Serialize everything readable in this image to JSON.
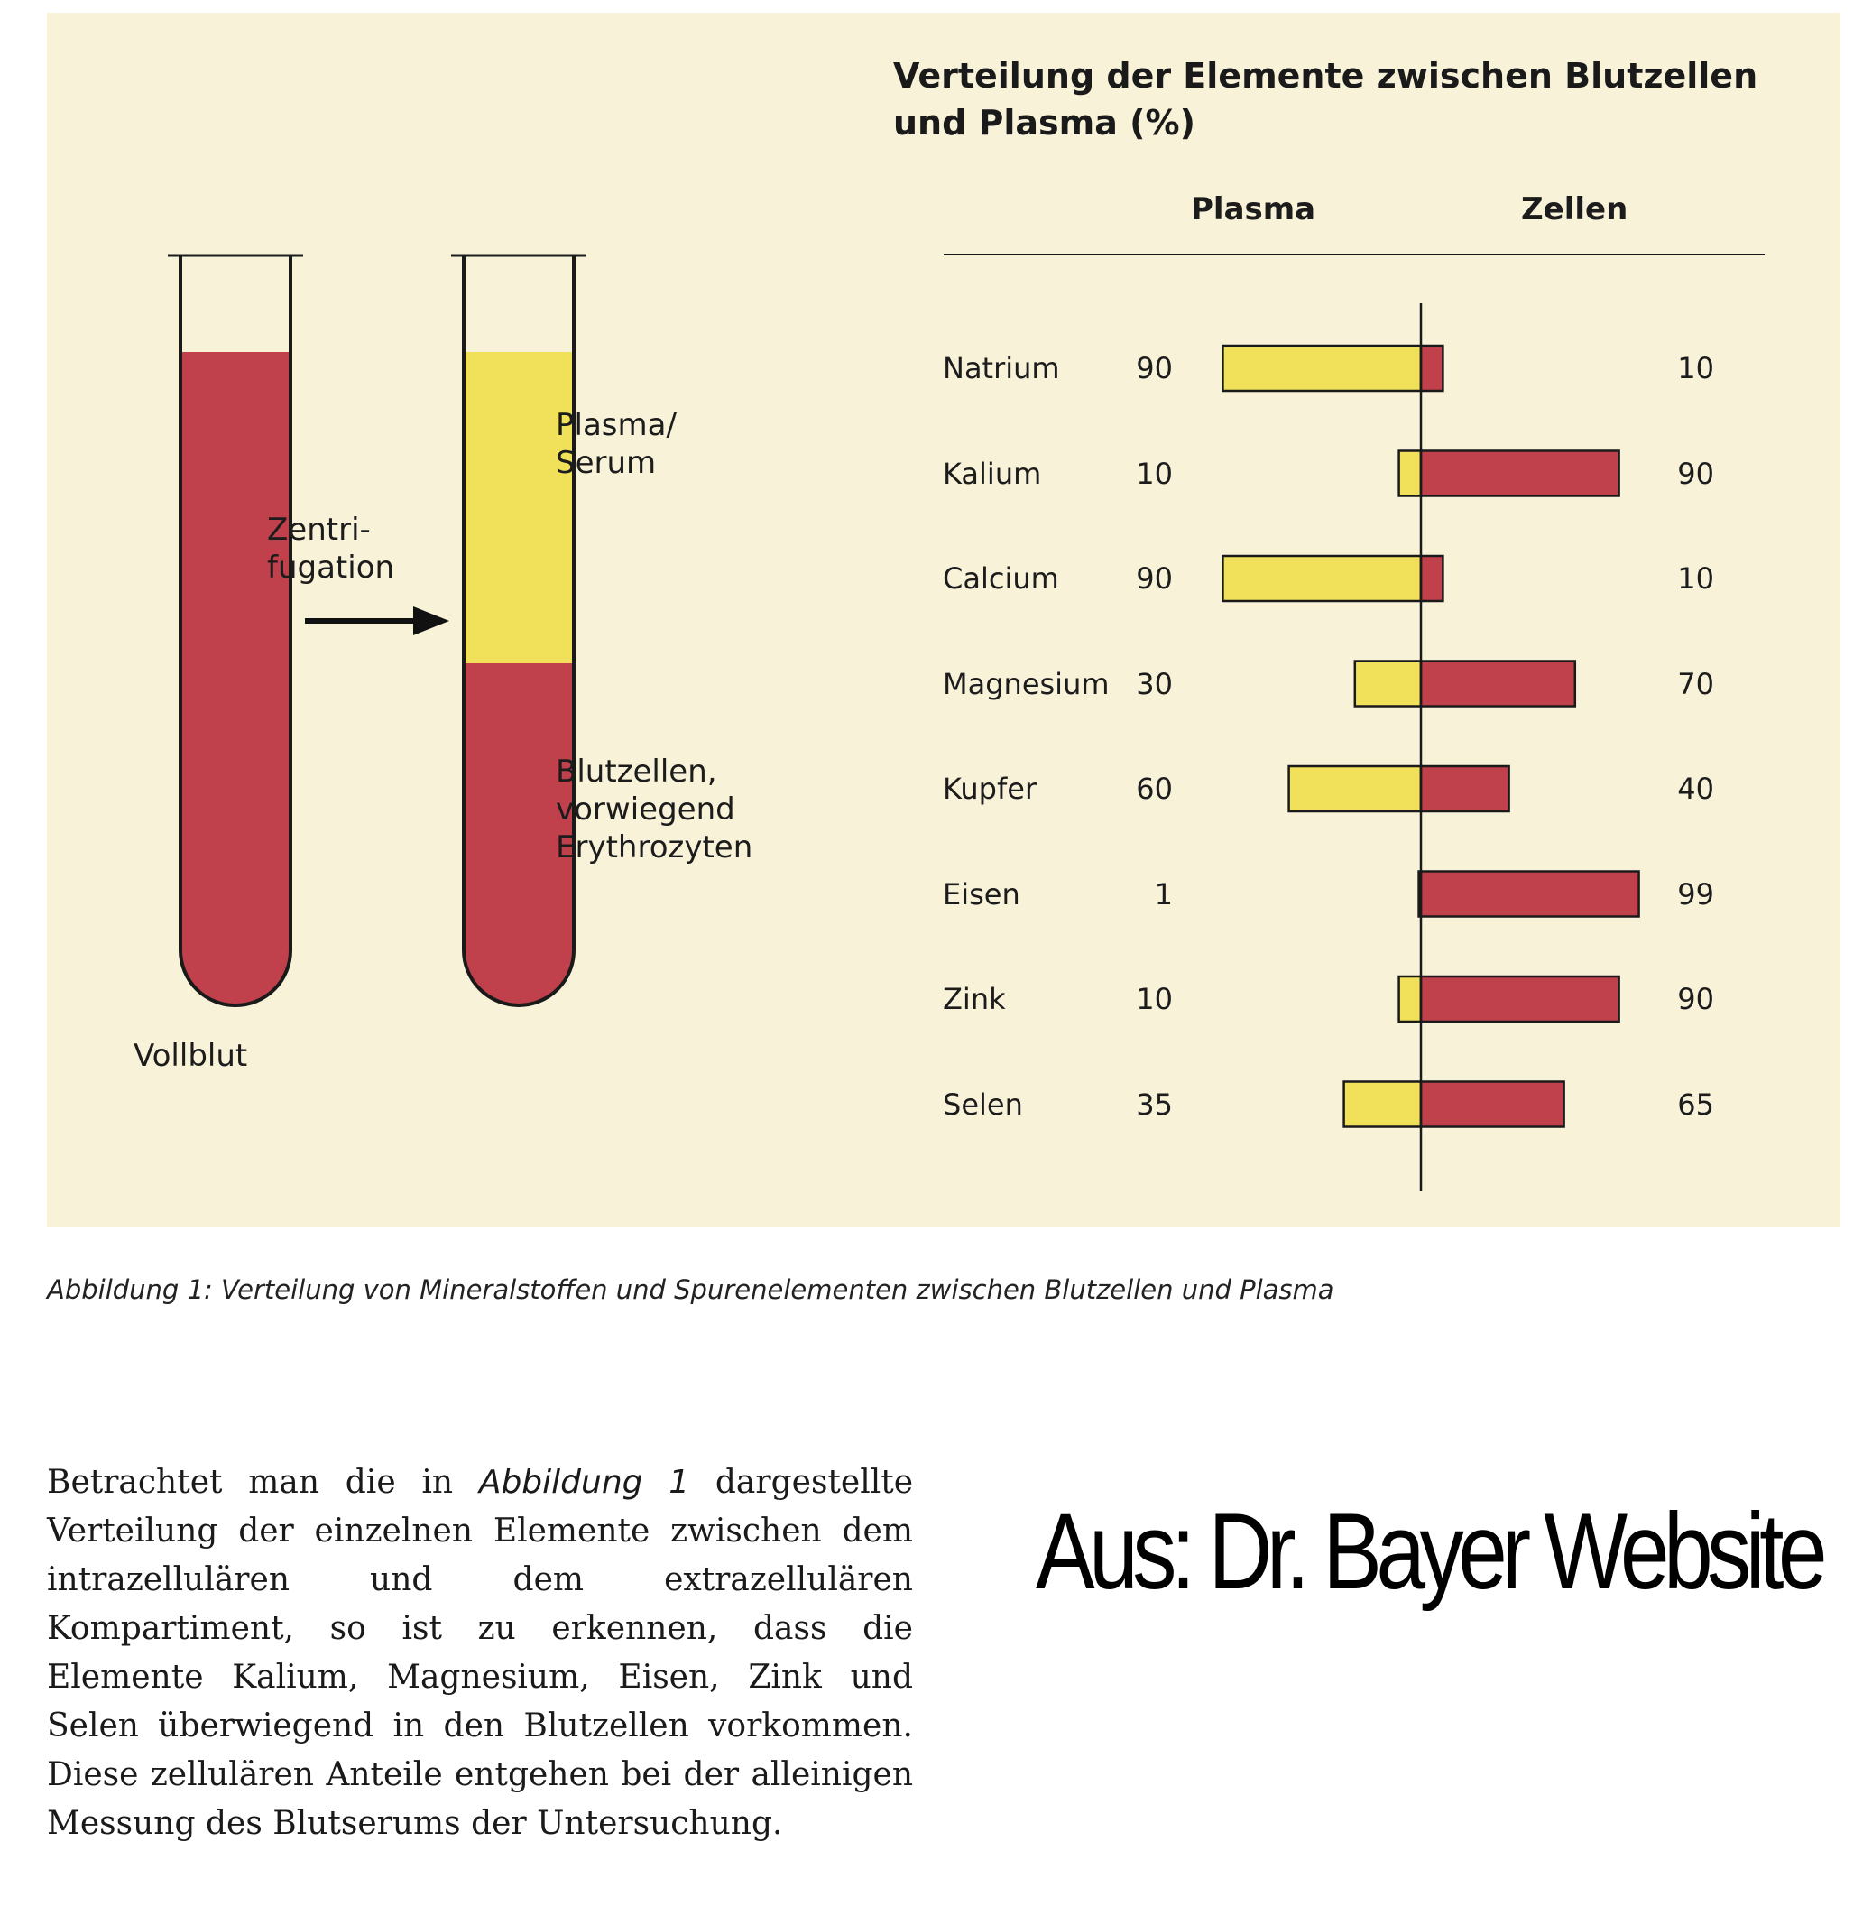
{
  "figure": {
    "tubes": {
      "whole_blood_label": "Vollblut",
      "centrifugation_label_line1": "Zentri-",
      "centrifugation_label_line2": "fugation",
      "plasma_label_line1": "Plasma/",
      "plasma_label_line2": "Serum",
      "cells_label_line1": "Blutzellen,",
      "cells_label_line2": "vorwiegend",
      "cells_label_line3": "Erythrozyten"
    },
    "caption": "Abbildung 1: Verteilung von Mineralstoffen und Spurenelementen zwischen Blutzellen und Plasma"
  },
  "chart_data": {
    "type": "bar",
    "orientation": "horizontal-diverging",
    "title_line1": "Verteilung der Elemente zwischen Blutzellen",
    "title_line2": "und Plasma (%)",
    "column_headers": [
      "Plasma",
      "Zellen"
    ],
    "categories": [
      "Natrium",
      "Kalium",
      "Calcium",
      "Magnesium",
      "Kupfer",
      "Eisen",
      "Zink",
      "Selen"
    ],
    "series": [
      {
        "name": "Plasma",
        "values": [
          90,
          10,
          90,
          30,
          60,
          1,
          10,
          35
        ],
        "color": "#f0e05a"
      },
      {
        "name": "Zellen",
        "values": [
          10,
          90,
          10,
          70,
          40,
          99,
          90,
          65
        ],
        "color": "#c0414c"
      }
    ],
    "range": [
      0,
      100
    ],
    "grid": false,
    "legend": "none"
  },
  "colors": {
    "panel_background": "#f8f2d9",
    "blood_red": "#c0414c",
    "plasma_yellow": "#f0e05a",
    "outline": "#1a1a1a"
  },
  "body_text": {
    "part1": "Betrachtet man die in ",
    "emphasis": "Abbildung 1",
    "part2": " dargestellte Verteilung der einzelnen Elemente zwischen dem intrazellulären und dem extrazellulären Kompartiment, so ist zu erkennen, dass die Elemente Kalium, Magnesium, Eisen, Zink und Selen überwiegend in den Blutzellen vorkommen. Diese zellulären Anteile entgehen bei der alleinigen Messung des Blutserums der Untersuchung."
  },
  "watermark": "Aus: Dr. Bayer Website"
}
